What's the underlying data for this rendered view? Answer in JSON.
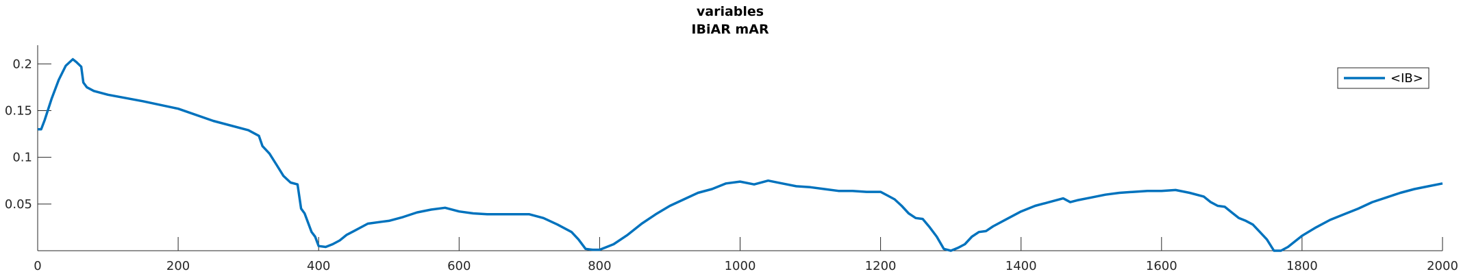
{
  "chart_data": {
    "type": "line",
    "title": "variables",
    "subtitle": "IBiAR mAR",
    "xlabel": "",
    "ylabel": "",
    "xlim": [
      0,
      2000
    ],
    "ylim": [
      0,
      0.22
    ],
    "xticks": [
      0,
      200,
      400,
      600,
      800,
      1000,
      1200,
      1400,
      1600,
      1800,
      2000
    ],
    "xtick_labels": [
      "0",
      "200",
      "400",
      "600",
      "800",
      "1000",
      "1200",
      "1400",
      "1600",
      "1800",
      "2000"
    ],
    "yticks": [
      0.05,
      0.1,
      0.15,
      0.2
    ],
    "ytick_labels": [
      "0.05",
      "0.1",
      "0.15",
      "0.2"
    ],
    "grid": false,
    "legend_position": "top-right",
    "series": [
      {
        "name": "<IB>",
        "color": "#0072BD",
        "x": [
          0,
          5,
          10,
          20,
          30,
          40,
          50,
          55,
          62,
          65,
          70,
          80,
          100,
          150,
          200,
          250,
          300,
          315,
          320,
          330,
          340,
          350,
          360,
          370,
          375,
          380,
          385,
          390,
          395,
          400,
          410,
          420,
          430,
          440,
          450,
          470,
          490,
          500,
          520,
          540,
          560,
          580,
          600,
          620,
          640,
          660,
          680,
          700,
          720,
          740,
          760,
          770,
          780,
          790,
          800,
          820,
          840,
          860,
          880,
          900,
          920,
          940,
          960,
          980,
          1000,
          1020,
          1040,
          1060,
          1080,
          1100,
          1120,
          1140,
          1160,
          1180,
          1200,
          1210,
          1220,
          1230,
          1240,
          1250,
          1260,
          1270,
          1280,
          1290,
          1300,
          1310,
          1320,
          1330,
          1340,
          1350,
          1360,
          1380,
          1400,
          1420,
          1440,
          1460,
          1470,
          1480,
          1500,
          1520,
          1540,
          1560,
          1580,
          1600,
          1620,
          1640,
          1660,
          1670,
          1680,
          1690,
          1700,
          1710,
          1720,
          1730,
          1740,
          1750,
          1760,
          1770,
          1780,
          1790,
          1800,
          1820,
          1840,
          1860,
          1880,
          1900,
          1920,
          1940,
          1960,
          1980,
          2000
        ],
        "y": [
          0.13,
          0.13,
          0.14,
          0.163,
          0.183,
          0.198,
          0.205,
          0.202,
          0.197,
          0.18,
          0.175,
          0.171,
          0.167,
          0.16,
          0.152,
          0.139,
          0.129,
          0.123,
          0.112,
          0.104,
          0.092,
          0.08,
          0.073,
          0.071,
          0.045,
          0.04,
          0.03,
          0.02,
          0.015,
          0.005,
          0.004,
          0.007,
          0.011,
          0.017,
          0.021,
          0.029,
          0.031,
          0.032,
          0.036,
          0.041,
          0.044,
          0.046,
          0.042,
          0.04,
          0.039,
          0.039,
          0.039,
          0.039,
          0.035,
          0.028,
          0.02,
          0.012,
          0.002,
          0.001,
          0.001,
          0.007,
          0.017,
          0.029,
          0.039,
          0.048,
          0.055,
          0.062,
          0.066,
          0.072,
          0.074,
          0.071,
          0.075,
          0.072,
          0.069,
          0.068,
          0.066,
          0.064,
          0.064,
          0.063,
          0.063,
          0.059,
          0.055,
          0.048,
          0.04,
          0.035,
          0.034,
          0.025,
          0.015,
          0.002,
          0.0,
          0.003,
          0.007,
          0.015,
          0.02,
          0.021,
          0.026,
          0.034,
          0.042,
          0.048,
          0.052,
          0.056,
          0.052,
          0.054,
          0.057,
          0.06,
          0.062,
          0.063,
          0.064,
          0.064,
          0.065,
          0.062,
          0.058,
          0.052,
          0.048,
          0.047,
          0.041,
          0.035,
          0.032,
          0.028,
          0.02,
          0.012,
          0.0,
          0.0,
          0.004,
          0.01,
          0.016,
          0.025,
          0.033,
          0.039,
          0.045,
          0.052,
          0.057,
          0.062,
          0.066,
          0.069,
          0.072
        ]
      }
    ]
  }
}
